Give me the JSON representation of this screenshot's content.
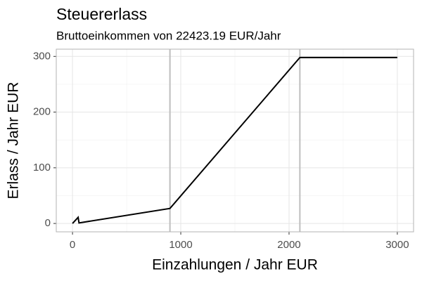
{
  "chart_data": {
    "type": "line",
    "title": "Steuererlass",
    "subtitle": "Bruttoeinkommen von 22423.19 EUR/Jahr",
    "x_label": "Einzahlungen / Jahr EUR",
    "y_label": "Erlass / Jahr EUR",
    "x": [
      0,
      52,
      60,
      900,
      2100,
      3000
    ],
    "series": [
      {
        "color": "#000000",
        "values": [
          0,
          11,
          1,
          27,
          298,
          298
        ]
      }
    ],
    "vlines": [
      900,
      2100
    ],
    "xlim": [
      -150,
      3150
    ],
    "ylim": [
      -15,
      313
    ],
    "xticks": [
      0,
      1000,
      2000,
      3000
    ],
    "yticks": [
      0,
      100,
      200,
      300
    ],
    "xminor": [
      500,
      1500,
      2500
    ],
    "yminor": [
      50,
      150,
      250
    ],
    "grid": true
  }
}
